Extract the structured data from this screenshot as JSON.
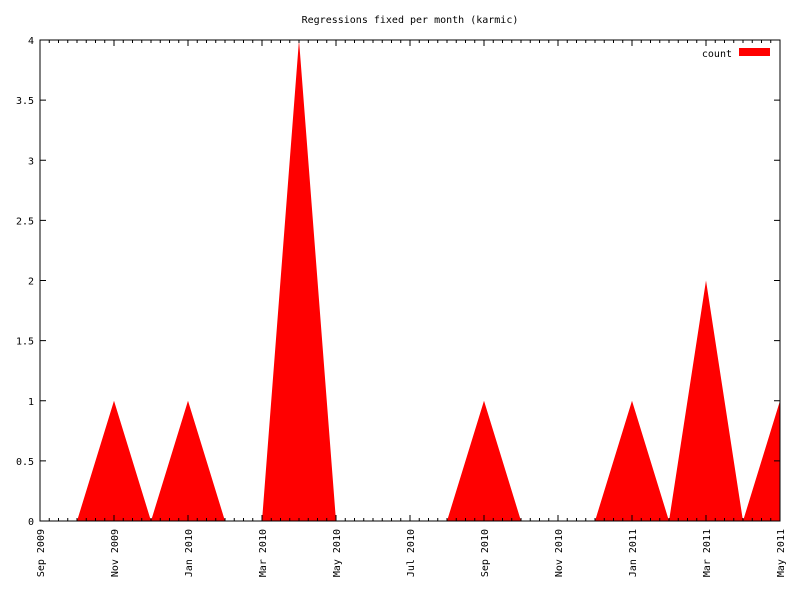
{
  "chart_data": {
    "type": "area",
    "title": "Regressions fixed per month (karmic)",
    "xlabel": "",
    "ylabel": "",
    "x_axis_type": "date",
    "xlim": [
      "2009-09-01",
      "2011-05-01"
    ],
    "ylim": [
      0,
      4
    ],
    "x_ticks": [
      "Sep 2009",
      "Nov 2009",
      "Jan 2010",
      "Mar 2010",
      "May 2010",
      "Jul 2010",
      "Sep 2010",
      "Nov 2010",
      "Jan 2011",
      "Mar 2011",
      "May 2011"
    ],
    "y_ticks": [
      "0",
      "0.5",
      "1",
      "1.5",
      "2",
      "2.5",
      "3",
      "3.5",
      "4"
    ],
    "grid": false,
    "legend_position": "top-right",
    "series": [
      {
        "name": "count",
        "color": "#ff0000",
        "x": [
          "2009-09-01",
          "2009-10-01",
          "2009-11-01",
          "2009-12-01",
          "2010-01-01",
          "2010-02-01",
          "2010-03-01",
          "2010-04-01",
          "2010-05-01",
          "2010-06-01",
          "2010-07-01",
          "2010-08-01",
          "2010-09-01",
          "2010-10-01",
          "2010-11-01",
          "2010-12-01",
          "2011-01-01",
          "2011-02-01",
          "2011-03-01",
          "2011-04-01",
          "2011-05-01"
        ],
        "values": [
          0,
          0,
          1,
          0,
          1,
          0,
          0,
          4,
          0,
          0,
          0,
          0,
          1,
          0,
          0,
          0,
          1,
          0,
          2,
          0,
          1
        ]
      }
    ]
  }
}
